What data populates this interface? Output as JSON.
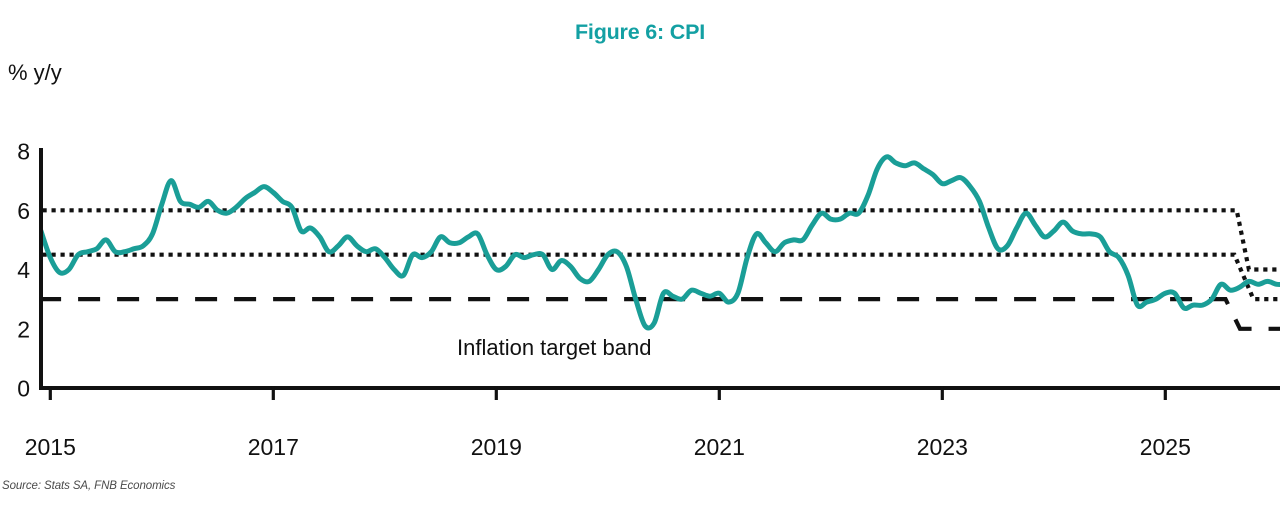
{
  "figure": {
    "title": "Figure 6: CPI",
    "y_unit_label": "% y/y",
    "annotation_label": "Inflation target band",
    "source_note": "Source: Stats SA, FNB Economics"
  },
  "colors": {
    "series_teal": "#1a9e97",
    "title_teal": "#13a0a3",
    "axis_black": "#111111",
    "source_gray": "#4a4a4a"
  },
  "chart_data": {
    "type": "line",
    "title": "Figure 6: CPI",
    "ylabel": "% y/y",
    "xlabel": "",
    "ylim": [
      0,
      8
    ],
    "yticks": [
      0,
      2,
      4,
      6,
      8
    ],
    "xticks": [
      2015,
      2017,
      2019,
      2021,
      2023,
      2025
    ],
    "x_range": [
      2014.9,
      2026.1
    ],
    "grid": false,
    "legend": "none",
    "annotation": "Inflation target band",
    "source": "Source: Stats SA, FNB Economics",
    "series": [
      {
        "name": "CPI (% y/y)",
        "color": "#1a9e97",
        "start": "2014-12",
        "end": "2026-02",
        "frequency": "monthly",
        "values": [
          5.3,
          4.4,
          3.9,
          4.0,
          4.5,
          4.6,
          4.7,
          5.0,
          4.6,
          4.6,
          4.7,
          4.8,
          5.2,
          6.2,
          7.0,
          6.3,
          6.2,
          6.1,
          6.3,
          6.0,
          5.9,
          6.1,
          6.4,
          6.6,
          6.8,
          6.6,
          6.3,
          6.1,
          5.3,
          5.4,
          5.1,
          4.6,
          4.8,
          5.1,
          4.8,
          4.6,
          4.7,
          4.4,
          4.0,
          3.8,
          4.5,
          4.4,
          4.6,
          5.1,
          4.9,
          4.9,
          5.1,
          5.2,
          4.5,
          4.0,
          4.1,
          4.5,
          4.4,
          4.5,
          4.5,
          4.0,
          4.3,
          4.1,
          3.7,
          3.6,
          4.0,
          4.5,
          4.6,
          4.1,
          3.0,
          2.1,
          2.2,
          3.2,
          3.1,
          3.0,
          3.3,
          3.2,
          3.1,
          3.2,
          2.9,
          3.2,
          4.4,
          5.2,
          4.9,
          4.6,
          4.9,
          5.0,
          5.0,
          5.5,
          5.9,
          5.7,
          5.7,
          5.9,
          5.9,
          6.5,
          7.4,
          7.8,
          7.6,
          7.5,
          7.6,
          7.4,
          7.2,
          6.9,
          7.0,
          7.1,
          6.8,
          6.3,
          5.4,
          4.7,
          4.8,
          5.4,
          5.9,
          5.5,
          5.1,
          5.3,
          5.6,
          5.3,
          5.2,
          5.2,
          5.1,
          4.6,
          4.4,
          3.8,
          2.8,
          2.9,
          3.0,
          3.2,
          3.2,
          2.7,
          2.8,
          2.8,
          3.0,
          3.5,
          3.3,
          3.4,
          3.6,
          3.5,
          3.6,
          3.5,
          3.5
        ]
      }
    ],
    "reference_lines": [
      {
        "name": "inflation-target-upper",
        "label": "Target band upper bound (6% stepping down to 4%)",
        "style": "dotted",
        "color": "#111111",
        "points": [
          [
            2014.93,
            6.0
          ],
          [
            2025.64,
            6.0
          ],
          [
            2025.75,
            4.0
          ],
          [
            2026.06,
            4.0
          ]
        ]
      },
      {
        "name": "inflation-target-midpoint",
        "label": "Target band midpoint (4.5% stepping down to 3%)",
        "style": "dotted",
        "color": "#111111",
        "points": [
          [
            2014.93,
            4.5
          ],
          [
            2025.62,
            4.5
          ],
          [
            2025.79,
            3.0
          ],
          [
            2026.06,
            3.0
          ]
        ]
      },
      {
        "name": "inflation-target-lower",
        "label": "Target band lower bound (3% stepping down to 2%)",
        "style": "dashed",
        "color": "#111111",
        "points": [
          [
            2014.9,
            3.0
          ],
          [
            2025.54,
            3.0
          ],
          [
            2025.67,
            2.0
          ],
          [
            2026.06,
            2.0
          ]
        ]
      }
    ]
  }
}
